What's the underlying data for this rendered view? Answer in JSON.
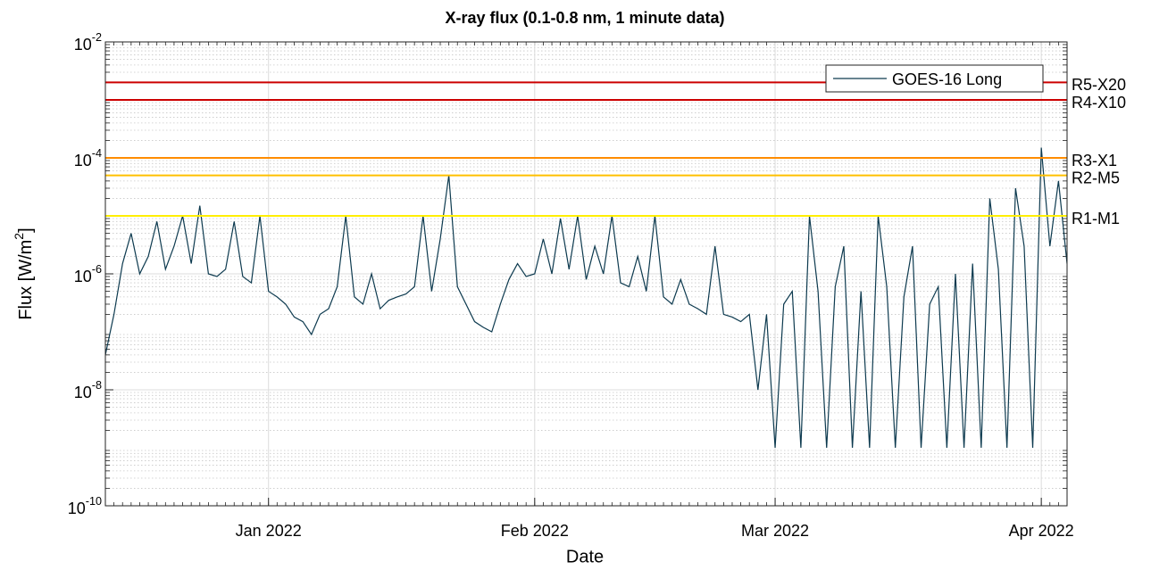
{
  "chart_data": {
    "type": "line",
    "title": "X-ray flux (0.1-0.8 nm, 1 minute data)",
    "x_label": "Date",
    "y_label": "Flux [W/m2]",
    "log_y": true,
    "grid": true,
    "legend": "upper right",
    "xlim": [
      0,
      112
    ],
    "xticks": [
      {
        "value": 19,
        "label": "Jan 2022"
      },
      {
        "value": 50,
        "label": "Feb 2022"
      },
      {
        "value": 78,
        "label": "Mar 2022"
      },
      {
        "value": 109,
        "label": "Apr 2022"
      }
    ],
    "ylim": [
      1e-10,
      0.01
    ],
    "yticks": [
      {
        "value": 1e-10,
        "label": "10-10"
      },
      {
        "value": 1e-08,
        "label": "10-8"
      },
      {
        "value": 1e-06,
        "label": "10-6"
      },
      {
        "value": 0.0001,
        "label": "10-4"
      },
      {
        "value": 0.01,
        "label": "10-2"
      }
    ],
    "thresholds": [
      {
        "label": "R5-X20",
        "value": 0.002,
        "color": "#cc0000"
      },
      {
        "label": "R4-X10",
        "value": 0.001,
        "color": "#cc0000"
      },
      {
        "label": "R3-X1",
        "value": 0.0001,
        "color": "#ff8c00"
      },
      {
        "label": "R2-M5",
        "value": 5e-05,
        "color": "#ffc000"
      },
      {
        "label": "R1-M1",
        "value": 1e-05,
        "color": "#ffee00"
      }
    ],
    "series": [
      {
        "name": "GOES-16 Long",
        "color": "#0d3a4f",
        "values": [
          4e-08,
          2e-07,
          1.5e-06,
          5e-06,
          1e-06,
          2e-06,
          8e-06,
          1.2e-06,
          3e-06,
          1e-05,
          1.5e-06,
          1.5e-05,
          1e-06,
          9e-07,
          1.2e-06,
          8e-06,
          9e-07,
          7e-07,
          1e-05,
          5e-07,
          4e-07,
          3e-07,
          1.8e-07,
          1.5e-07,
          9e-08,
          2e-07,
          2.5e-07,
          6e-07,
          1e-05,
          4e-07,
          3e-07,
          1e-06,
          2.5e-07,
          3.5e-07,
          4e-07,
          4.5e-07,
          6e-07,
          1e-05,
          5e-07,
          4e-06,
          5e-05,
          6e-07,
          3e-07,
          1.5e-07,
          1.2e-07,
          1e-07,
          3e-07,
          8e-07,
          1.5e-06,
          9e-07,
          1e-06,
          4e-06,
          1e-06,
          9e-06,
          1.2e-06,
          1e-05,
          8e-07,
          3e-06,
          1e-06,
          1e-05,
          7e-07,
          6e-07,
          2e-06,
          5e-07,
          1e-05,
          4e-07,
          3e-07,
          8e-07,
          3e-07,
          2.5e-07,
          2e-07,
          3e-06,
          2e-07,
          1.8e-07,
          1.5e-07,
          2e-07,
          1e-08,
          2e-07,
          1e-09,
          3e-07,
          5e-07,
          1e-09,
          1e-05,
          5e-07,
          1e-09,
          6e-07,
          3e-06,
          1e-09,
          5e-07,
          1e-09,
          1e-05,
          6e-07,
          1e-09,
          4e-07,
          3e-06,
          1e-09,
          3e-07,
          6e-07,
          1e-09,
          1e-06,
          1e-09,
          1.5e-06,
          1e-09,
          2e-05,
          1.2e-06,
          1e-09,
          3e-05,
          3e-06,
          1e-09,
          0.00015,
          3e-06,
          4e-05,
          1.5e-06
        ]
      }
    ]
  }
}
